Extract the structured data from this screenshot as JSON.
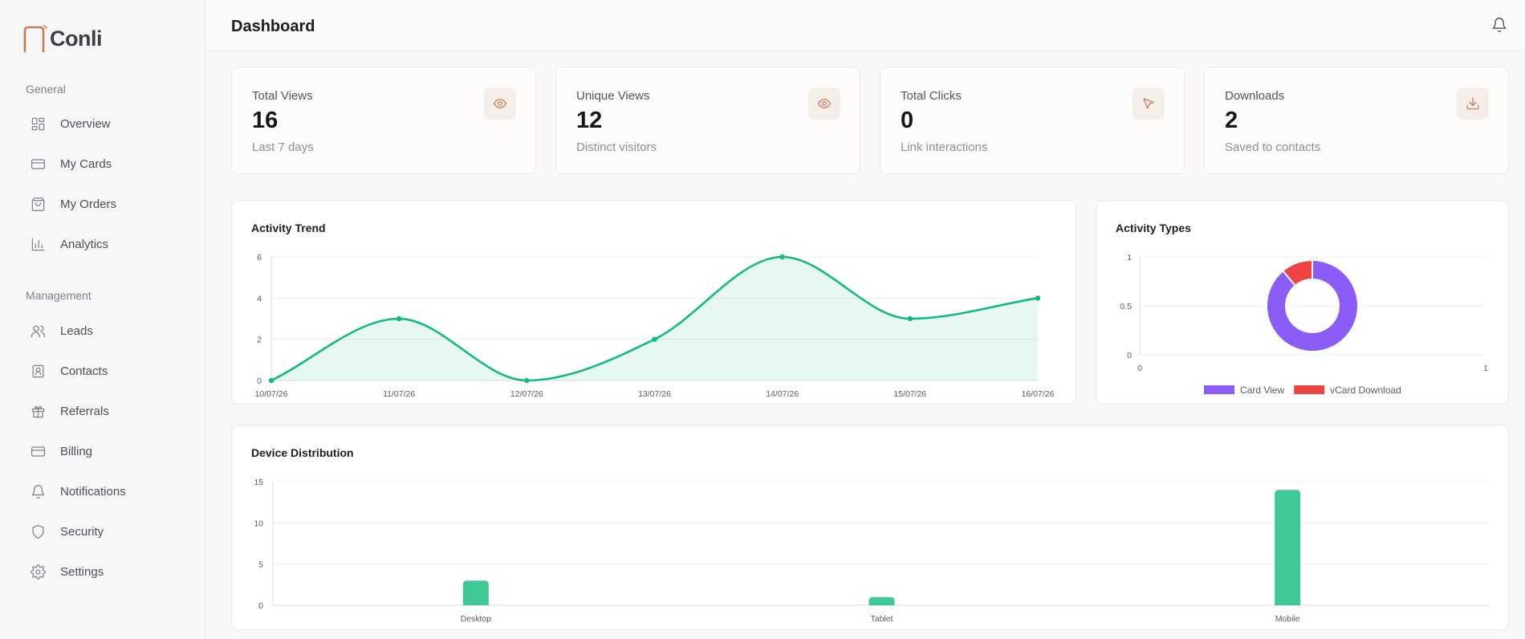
{
  "app": {
    "brand": "Conli"
  },
  "sidebar": {
    "sections": [
      {
        "label": "General",
        "items": [
          {
            "label": "Overview",
            "icon": "grid-icon"
          },
          {
            "label": "My Cards",
            "icon": "card-icon"
          },
          {
            "label": "My Orders",
            "icon": "bag-icon"
          },
          {
            "label": "Analytics",
            "icon": "bar-chart-icon"
          }
        ]
      },
      {
        "label": "Management",
        "items": [
          {
            "label": "Leads",
            "icon": "users-icon"
          },
          {
            "label": "Contacts",
            "icon": "contact-icon"
          },
          {
            "label": "Referrals",
            "icon": "gift-icon"
          },
          {
            "label": "Billing",
            "icon": "credit-card-icon"
          },
          {
            "label": "Notifications",
            "icon": "bell-icon"
          },
          {
            "label": "Security",
            "icon": "shield-icon"
          },
          {
            "label": "Settings",
            "icon": "gear-icon"
          }
        ]
      }
    ]
  },
  "header": {
    "title": "Dashboard",
    "notification_icon": "bell-icon"
  },
  "stats": [
    {
      "title": "Total Views",
      "value": "16",
      "sub": "Last 7 days",
      "icon": "eye-icon"
    },
    {
      "title": "Unique Views",
      "value": "12",
      "sub": "Distinct visitors",
      "icon": "eye-icon"
    },
    {
      "title": "Total Clicks",
      "value": "0",
      "sub": "Link interactions",
      "icon": "cursor-icon"
    },
    {
      "title": "Downloads",
      "value": "2",
      "sub": "Saved to contacts",
      "icon": "download-icon"
    }
  ],
  "colors": {
    "accent": "#c97a58",
    "line": "#10b981",
    "bar": "#3fc796",
    "donut_primary": "#8b5cf6",
    "donut_secondary": "#ef4444"
  },
  "chart_data": [
    {
      "type": "line",
      "title": "Activity Trend",
      "x": [
        "10/07/26",
        "11/07/26",
        "12/07/26",
        "13/07/26",
        "14/07/26",
        "15/07/26",
        "16/07/26"
      ],
      "values": [
        0,
        3,
        0,
        2,
        6,
        3,
        4
      ],
      "ylim": [
        0,
        6
      ],
      "yticks": [
        "0",
        "2",
        "4",
        "6"
      ],
      "area_fill": true,
      "grid": true
    },
    {
      "type": "pie",
      "title": "Activity Types",
      "labels": [
        "Card View",
        "vCard Download"
      ],
      "values": [
        16,
        2
      ],
      "yticks": [
        "0",
        "0.5",
        "1"
      ],
      "xticks": [
        "0",
        "1"
      ],
      "legend": "bottom",
      "donut": true
    },
    {
      "type": "bar",
      "title": "Device Distribution",
      "categories": [
        "Desktop",
        "Tablet",
        "Mobile"
      ],
      "values": [
        3,
        1,
        14
      ],
      "ylim": [
        0,
        15
      ],
      "yticks": [
        "0",
        "5",
        "10",
        "15"
      ],
      "grid": true
    }
  ]
}
